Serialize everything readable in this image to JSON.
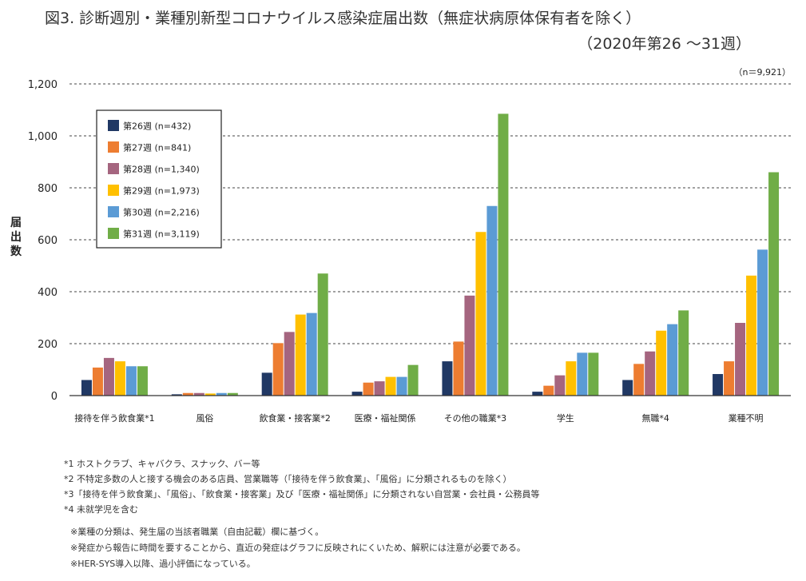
{
  "title": {
    "line1": "図3. 診断週別・業種別新型コロナウイルス感染症届出数（無症状病原体保有者を除く）",
    "line2": "（2020年第26 〜31週）"
  },
  "chart_data": {
    "type": "bar",
    "ylabel": "届出数",
    "note": "（n＝9,921）",
    "ylim": [
      0,
      1200
    ],
    "yticks": [
      "0",
      "200",
      "400",
      "600",
      "800",
      "1,000",
      "1,200"
    ],
    "ytick_values": [
      0,
      200,
      400,
      600,
      800,
      1000,
      1200
    ],
    "grid": true,
    "legend_position": "top-left",
    "categories": [
      "接待を伴う飲食業*1",
      "風俗",
      "飲食業・接客業*2",
      "医療・福祉関係",
      "その他の職業*3",
      "学生",
      "無職*4",
      "業種不明"
    ],
    "series": [
      {
        "name": "第26週 (n=432)",
        "color": "#203864",
        "values": [
          60,
          5,
          88,
          15,
          132,
          15,
          60,
          83
        ]
      },
      {
        "name": "第27週 (n=841)",
        "color": "#ED7D31",
        "values": [
          108,
          10,
          202,
          50,
          208,
          38,
          122,
          132
        ]
      },
      {
        "name": "第28週 (n=1,340)",
        "color": "#A5657F",
        "values": [
          145,
          10,
          245,
          55,
          385,
          78,
          170,
          280
        ]
      },
      {
        "name": "第29週 (n=1,973)",
        "color": "#FFC000",
        "values": [
          132,
          8,
          312,
          72,
          630,
          132,
          250,
          462
        ]
      },
      {
        "name": "第30週 (n=2,216)",
        "color": "#5B9BD5",
        "values": [
          113,
          10,
          318,
          72,
          730,
          165,
          275,
          562
        ]
      },
      {
        "name": "第31週 (n=3,119)",
        "color": "#70AD47",
        "values": [
          113,
          10,
          470,
          118,
          1085,
          165,
          328,
          860
        ]
      }
    ]
  },
  "footnotes": [
    "*1 ホストクラブ、キャバクラ、スナック、バー等",
    "*2 不特定多数の人と接する機会のある店員、営業職等（「接待を伴う飲食業」、「風俗」に分類されるものを除く）",
    "*3「接待を伴う飲食業」、「風俗」、「飲食業・接客業」及び「医療・福祉関係」に分類されない自営業・会社員・公務員等",
    "*4 未就学児を含む"
  ],
  "notes": [
    "※業種の分類は、発生届の当該者職業（自由記載）欄に基づく。",
    "※発症から報告に時間を要することから、直近の発症はグラフに反映されにくいため、解釈には注意が必要である。",
    "※HER-SYS導入以降、過小評価になっている。"
  ]
}
